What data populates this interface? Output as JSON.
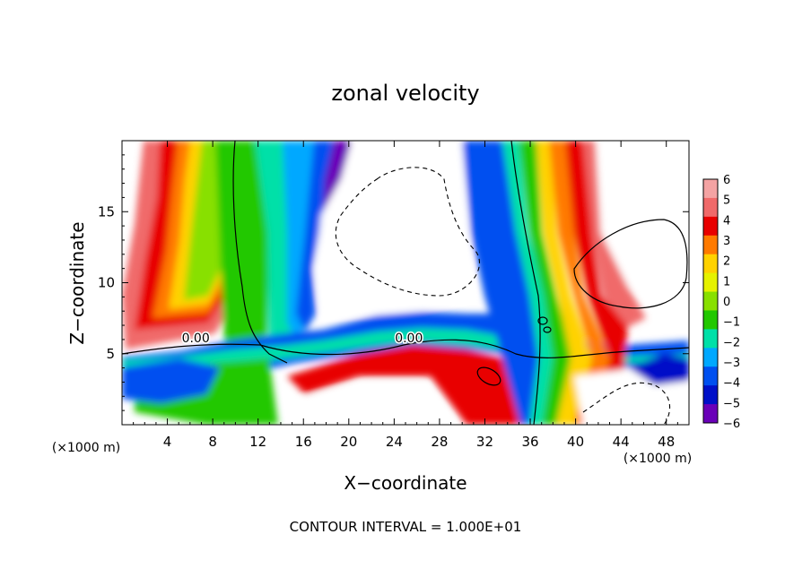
{
  "chart_data": {
    "type": "heatmap",
    "title": "zonal velocity",
    "xlabel": "X−coordinate",
    "ylabel": "Z−coordinate",
    "x_unit_left": "(×1000 m)",
    "x_unit_right": "(×1000 m)",
    "footer": "CONTOUR INTERVAL = 1.000E+01",
    "xlim": [
      0,
      50
    ],
    "ylim": [
      0,
      20
    ],
    "x_ticks": [
      4,
      8,
      12,
      16,
      20,
      24,
      28,
      32,
      36,
      40,
      44,
      48
    ],
    "y_ticks": [
      5,
      10,
      15
    ],
    "contour_labels": [
      {
        "text": "0.00",
        "x": 6.5,
        "y": 5.8
      },
      {
        "text": "0.00",
        "x": 25.3,
        "y": 5.8
      }
    ],
    "colorbar": {
      "min": -6,
      "max": 6,
      "labels": [
        "6",
        "5",
        "4",
        "3",
        "2",
        "1",
        "0",
        "−1",
        "−2",
        "−3",
        "−4",
        "−5",
        "−6"
      ],
      "colors": [
        "#f4a3a3",
        "#f06a6a",
        "#e80000",
        "#ff7a00",
        "#ffd200",
        "#e6f200",
        "#88e000",
        "#22c800",
        "#00e0a8",
        "#00a8ff",
        "#0050f0",
        "#0010c8",
        "#6a00b8"
      ]
    }
  }
}
